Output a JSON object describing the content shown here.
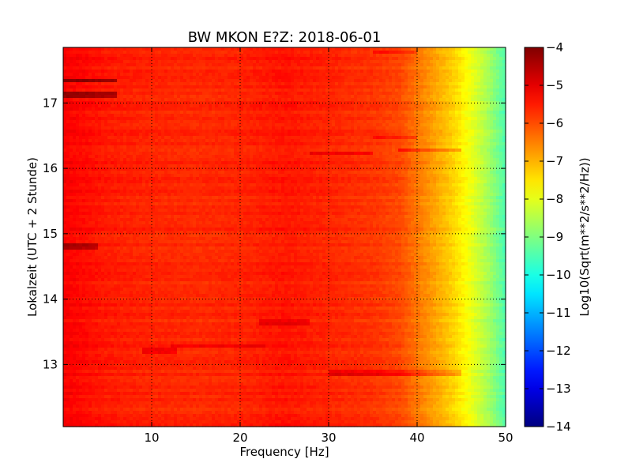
{
  "chart_data": {
    "type": "heatmap",
    "title": "BW MKON E?Z: 2018-06-01",
    "xlabel": "Frequency [Hz]",
    "ylabel": "Lokalzeit (UTC + 2 Stunde)",
    "xlim": [
      0,
      50
    ],
    "ylim": [
      17.85,
      12.05
    ],
    "xticks": [
      10,
      20,
      30,
      40,
      50
    ],
    "yticks": [
      13,
      14,
      15,
      16,
      17
    ],
    "grid": true,
    "colormap": "jet",
    "colorbar": {
      "label": "Log10(Sqrt(m**2/s**2/Hz))",
      "range": [
        -14,
        -4
      ],
      "ticks": [
        -4,
        -5,
        -6,
        -7,
        -8,
        -9,
        -10,
        -11,
        -12,
        -13,
        -14
      ]
    },
    "column_profile": {
      "frequency_hz": [
        0,
        5,
        10,
        15,
        20,
        25,
        30,
        35,
        38,
        40,
        42,
        44,
        46,
        48,
        50
      ],
      "log10_amplitude": [
        -5.2,
        -5.5,
        -5.6,
        -5.65,
        -5.6,
        -5.45,
        -5.6,
        -5.75,
        -5.95,
        -6.4,
        -6.85,
        -7.3,
        -7.9,
        -8.6,
        -9.5
      ]
    },
    "bands": [
      {
        "time": 12.88,
        "f_from": 30,
        "f_to": 45,
        "delta": 0.6
      },
      {
        "time": 13.2,
        "f_from": 9,
        "f_to": 13,
        "delta": 0.5
      },
      {
        "time": 13.28,
        "f_from": 12,
        "f_to": 23,
        "delta": 0.35
      },
      {
        "time": 13.65,
        "f_from": 22,
        "f_to": 28,
        "delta": 0.45
      },
      {
        "time": 14.8,
        "f_from": 0,
        "f_to": 4,
        "delta": 0.9
      },
      {
        "time": 16.23,
        "f_from": 28,
        "f_to": 35,
        "delta": 0.55
      },
      {
        "time": 16.28,
        "f_from": 38,
        "f_to": 45,
        "delta": 0.7
      },
      {
        "time": 16.48,
        "f_from": 35,
        "f_to": 40,
        "delta": 0.45
      },
      {
        "time": 17.12,
        "f_from": 0,
        "f_to": 6,
        "delta": 1.1
      },
      {
        "time": 17.35,
        "f_from": 0,
        "f_to": 6,
        "delta": 1.2
      },
      {
        "time": 17.78,
        "f_from": 35,
        "f_to": 40,
        "delta": 0.55
      }
    ]
  },
  "colors": {
    "background": "#ffffff",
    "axes": "#000000",
    "grid": "#000000"
  }
}
